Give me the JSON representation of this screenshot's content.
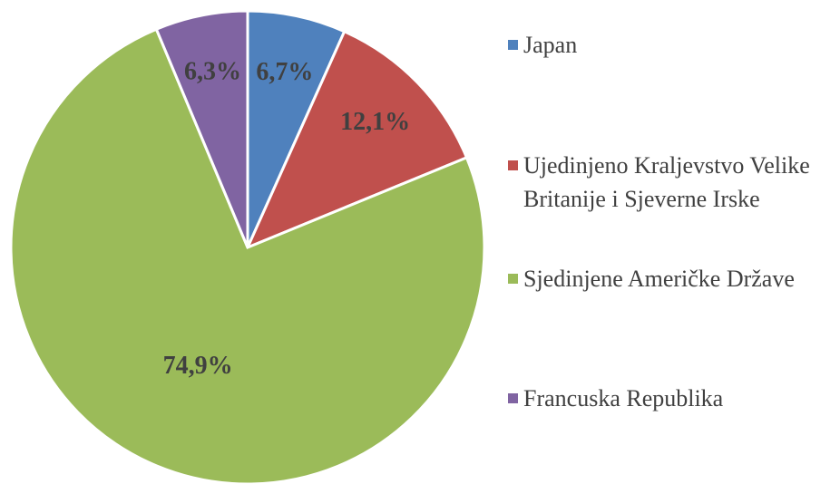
{
  "chart_data": {
    "type": "pie",
    "categories": [
      "Japan",
      "Ujedinjeno Kraljevstvo Velike Britanije i Sjeverne Irske",
      "Sjedinjene Američke Države",
      "Francuska Republika"
    ],
    "values": [
      6.7,
      12.1,
      74.9,
      6.3
    ],
    "value_labels": [
      "6,7%",
      "12,1%",
      "74,9%",
      "6,3%"
    ],
    "colors": [
      "#4f81bd",
      "#c0504d",
      "#9bbb59",
      "#8064a2"
    ],
    "legend": "right"
  }
}
